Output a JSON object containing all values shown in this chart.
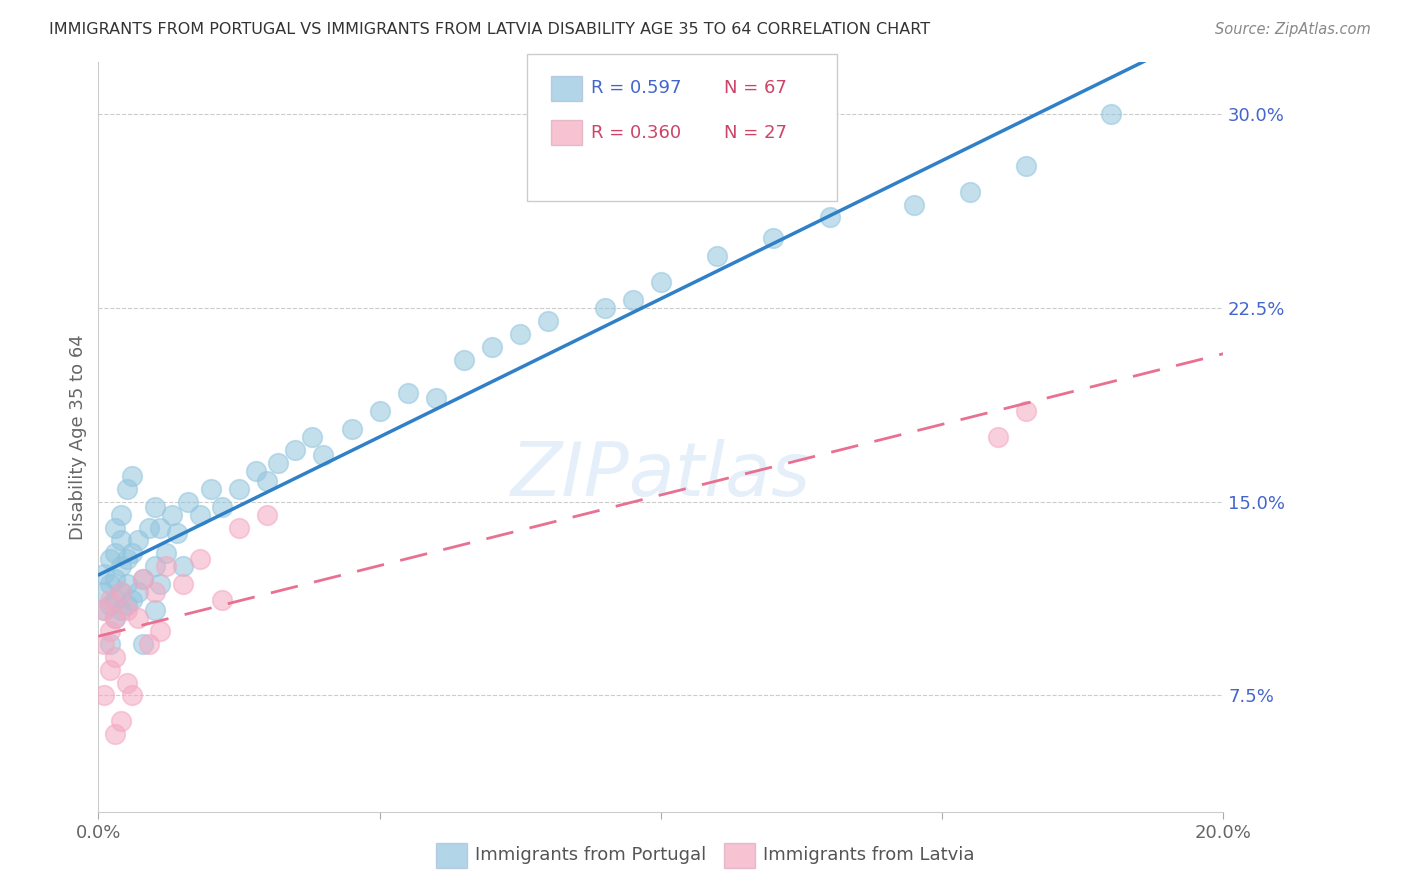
{
  "title": "IMMIGRANTS FROM PORTUGAL VS IMMIGRANTS FROM LATVIA DISABILITY AGE 35 TO 64 CORRELATION CHART",
  "source": "Source: ZipAtlas.com",
  "ylabel": "Disability Age 35 to 64",
  "xlim": [
    0.0,
    0.2
  ],
  "ylim": [
    0.03,
    0.32
  ],
  "xticks": [
    0.0,
    0.05,
    0.1,
    0.15,
    0.2
  ],
  "xtick_labels": [
    "0.0%",
    "",
    "",
    "",
    "20.0%"
  ],
  "ytick_labels_right": [
    "7.5%",
    "15.0%",
    "22.5%",
    "30.0%"
  ],
  "yticks_right": [
    0.075,
    0.15,
    0.225,
    0.3
  ],
  "legend_r1": "R = 0.597",
  "legend_n1": "N = 67",
  "legend_r2": "R = 0.360",
  "legend_n2": "N = 27",
  "legend_label1": "Immigrants from Portugal",
  "legend_label2": "Immigrants from Latvia",
  "blue_color": "#92c5de",
  "pink_color": "#f4a8c0",
  "blue_line_color": "#3080c8",
  "pink_line_color": "#e87090",
  "portugal_x": [
    0.001,
    0.001,
    0.001,
    0.002,
    0.002,
    0.002,
    0.002,
    0.003,
    0.003,
    0.003,
    0.003,
    0.003,
    0.004,
    0.004,
    0.004,
    0.004,
    0.004,
    0.005,
    0.005,
    0.005,
    0.005,
    0.006,
    0.006,
    0.006,
    0.007,
    0.007,
    0.008,
    0.008,
    0.009,
    0.01,
    0.01,
    0.01,
    0.011,
    0.011,
    0.012,
    0.013,
    0.014,
    0.015,
    0.016,
    0.018,
    0.02,
    0.022,
    0.025,
    0.028,
    0.03,
    0.032,
    0.035,
    0.038,
    0.04,
    0.045,
    0.05,
    0.055,
    0.06,
    0.065,
    0.07,
    0.075,
    0.08,
    0.09,
    0.095,
    0.1,
    0.11,
    0.12,
    0.13,
    0.145,
    0.155,
    0.165,
    0.18
  ],
  "portugal_y": [
    0.108,
    0.115,
    0.122,
    0.095,
    0.11,
    0.118,
    0.128,
    0.105,
    0.112,
    0.12,
    0.13,
    0.14,
    0.108,
    0.115,
    0.125,
    0.135,
    0.145,
    0.11,
    0.118,
    0.128,
    0.155,
    0.112,
    0.13,
    0.16,
    0.115,
    0.135,
    0.095,
    0.12,
    0.14,
    0.108,
    0.125,
    0.148,
    0.118,
    0.14,
    0.13,
    0.145,
    0.138,
    0.125,
    0.15,
    0.145,
    0.155,
    0.148,
    0.155,
    0.162,
    0.158,
    0.165,
    0.17,
    0.175,
    0.168,
    0.178,
    0.185,
    0.192,
    0.19,
    0.205,
    0.21,
    0.215,
    0.22,
    0.225,
    0.228,
    0.235,
    0.245,
    0.252,
    0.26,
    0.265,
    0.27,
    0.28,
    0.3
  ],
  "latvia_x": [
    0.001,
    0.001,
    0.001,
    0.002,
    0.002,
    0.002,
    0.003,
    0.003,
    0.003,
    0.004,
    0.004,
    0.005,
    0.005,
    0.006,
    0.007,
    0.008,
    0.009,
    0.01,
    0.011,
    0.012,
    0.015,
    0.018,
    0.022,
    0.025,
    0.03,
    0.16,
    0.165
  ],
  "latvia_y": [
    0.108,
    0.095,
    0.075,
    0.085,
    0.1,
    0.112,
    0.06,
    0.09,
    0.105,
    0.065,
    0.115,
    0.08,
    0.108,
    0.075,
    0.105,
    0.12,
    0.095,
    0.115,
    0.1,
    0.125,
    0.118,
    0.128,
    0.112,
    0.14,
    0.145,
    0.175,
    0.185
  ]
}
